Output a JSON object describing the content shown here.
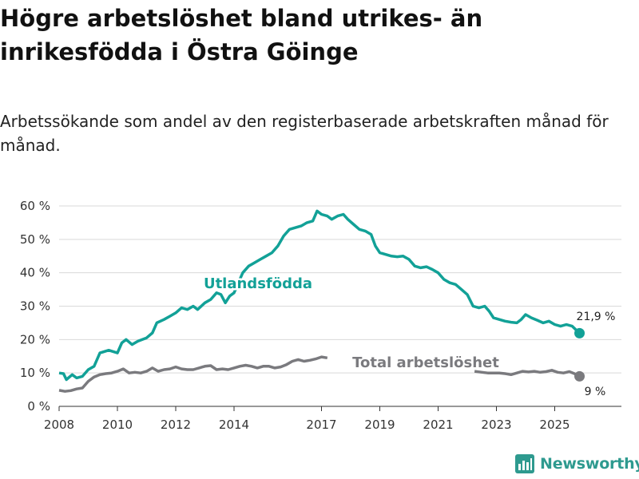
{
  "title": "Högre arbetslöshet bland utrikes- än inrikesfödda i Östra Göinge",
  "subtitle": "Arbetssökande som andel av den registerbaserade arbetskraften månad för månad.",
  "brand": {
    "name": "Newsworthy",
    "color": "#2e9a8f"
  },
  "chart_data": {
    "type": "line",
    "ylim": [
      0,
      60
    ],
    "yticks": [
      0,
      10,
      20,
      30,
      40,
      50,
      60
    ],
    "ytick_labels": [
      "0 %",
      "10 %",
      "20 %",
      "30 %",
      "40 %",
      "50 %",
      "60 %"
    ],
    "xlim": [
      2008,
      2026.3
    ],
    "xticks": [
      2008,
      2010,
      2012,
      2014,
      2017,
      2019,
      2021,
      2023,
      2025
    ],
    "xtick_labels": [
      "2008",
      "2010",
      "2012",
      "2014",
      "2017",
      "2019",
      "2021",
      "2023",
      "2025"
    ],
    "series": [
      {
        "name": "Utlandsfödda",
        "label": "Utlandsfödda",
        "color": "#12a197",
        "end_label": "21,9 %",
        "points": [
          [
            2008.0,
            10
          ],
          [
            2008.15,
            9.8
          ],
          [
            2008.25,
            8
          ],
          [
            2008.45,
            9.5
          ],
          [
            2008.6,
            8.5
          ],
          [
            2008.8,
            9
          ],
          [
            2009.0,
            11
          ],
          [
            2009.2,
            12
          ],
          [
            2009.4,
            16
          ],
          [
            2009.7,
            16.8
          ],
          [
            2010.0,
            16
          ],
          [
            2010.15,
            19
          ],
          [
            2010.3,
            20
          ],
          [
            2010.5,
            18.5
          ],
          [
            2010.7,
            19.5
          ],
          [
            2011.0,
            20.5
          ],
          [
            2011.2,
            22
          ],
          [
            2011.35,
            25
          ],
          [
            2011.6,
            26
          ],
          [
            2011.8,
            27
          ],
          [
            2012.0,
            28
          ],
          [
            2012.2,
            29.5
          ],
          [
            2012.4,
            29
          ],
          [
            2012.6,
            30
          ],
          [
            2012.75,
            29
          ],
          [
            2013.0,
            31
          ],
          [
            2013.2,
            32
          ],
          [
            2013.4,
            34
          ],
          [
            2013.55,
            33.5
          ],
          [
            2013.7,
            31
          ],
          [
            2013.85,
            33
          ],
          [
            2014.0,
            34
          ],
          [
            2014.1,
            36
          ],
          [
            2014.3,
            40
          ],
          [
            2014.5,
            42
          ],
          [
            2014.7,
            43
          ],
          [
            2014.9,
            44
          ],
          [
            2015.1,
            45
          ],
          [
            2015.3,
            46
          ],
          [
            2015.5,
            48
          ],
          [
            2015.7,
            51
          ],
          [
            2015.9,
            53
          ],
          [
            2016.1,
            53.5
          ],
          [
            2016.3,
            54
          ],
          [
            2016.5,
            55
          ],
          [
            2016.7,
            55.5
          ],
          [
            2016.85,
            58.5
          ],
          [
            2017.0,
            57.5
          ],
          [
            2017.2,
            57
          ],
          [
            2017.35,
            56
          ],
          [
            2017.55,
            57
          ],
          [
            2017.75,
            57.5
          ],
          [
            2017.9,
            56
          ],
          [
            2018.1,
            54.5
          ],
          [
            2018.3,
            53
          ],
          [
            2018.5,
            52.5
          ],
          [
            2018.7,
            51.5
          ],
          [
            2018.85,
            48
          ],
          [
            2019.0,
            46
          ],
          [
            2019.2,
            45.5
          ],
          [
            2019.4,
            45
          ],
          [
            2019.6,
            44.8
          ],
          [
            2019.8,
            45
          ],
          [
            2020.0,
            44
          ],
          [
            2020.2,
            42
          ],
          [
            2020.4,
            41.5
          ],
          [
            2020.6,
            41.8
          ],
          [
            2020.8,
            41
          ],
          [
            2021.0,
            40
          ],
          [
            2021.2,
            38
          ],
          [
            2021.4,
            37
          ],
          [
            2021.6,
            36.5
          ],
          [
            2021.8,
            35
          ],
          [
            2022.0,
            33.5
          ],
          [
            2022.2,
            30
          ],
          [
            2022.4,
            29.5
          ],
          [
            2022.6,
            30
          ],
          [
            2022.75,
            28.5
          ],
          [
            2022.9,
            26.5
          ],
          [
            2023.1,
            26
          ],
          [
            2023.3,
            25.5
          ],
          [
            2023.5,
            25.2
          ],
          [
            2023.7,
            25
          ],
          [
            2023.85,
            26
          ],
          [
            2024.0,
            27.5
          ],
          [
            2024.2,
            26.5
          ],
          [
            2024.4,
            25.8
          ],
          [
            2024.6,
            25
          ],
          [
            2024.8,
            25.5
          ],
          [
            2025.0,
            24.5
          ],
          [
            2025.2,
            24
          ],
          [
            2025.4,
            24.5
          ],
          [
            2025.6,
            24
          ],
          [
            2025.85,
            21.9
          ]
        ]
      },
      {
        "name": "Total arbetslöshet",
        "label": "Total arbetslöshet",
        "color": "#7a7a7e",
        "end_label": "9 %",
        "points": [
          [
            2008.0,
            4.8
          ],
          [
            2008.2,
            4.5
          ],
          [
            2008.4,
            4.7
          ],
          [
            2008.6,
            5.2
          ],
          [
            2008.8,
            5.5
          ],
          [
            2009.0,
            7.5
          ],
          [
            2009.2,
            8.8
          ],
          [
            2009.4,
            9.5
          ],
          [
            2009.6,
            9.8
          ],
          [
            2009.8,
            10
          ],
          [
            2010.0,
            10.5
          ],
          [
            2010.2,
            11.2
          ],
          [
            2010.4,
            10
          ],
          [
            2010.6,
            10.2
          ],
          [
            2010.8,
            10
          ],
          [
            2011.0,
            10.5
          ],
          [
            2011.2,
            11.5
          ],
          [
            2011.4,
            10.5
          ],
          [
            2011.6,
            11
          ],
          [
            2011.8,
            11.2
          ],
          [
            2012.0,
            11.8
          ],
          [
            2012.2,
            11.2
          ],
          [
            2012.4,
            11
          ],
          [
            2012.6,
            11
          ],
          [
            2012.8,
            11.5
          ],
          [
            2013.0,
            12
          ],
          [
            2013.2,
            12.2
          ],
          [
            2013.4,
            11
          ],
          [
            2013.6,
            11.2
          ],
          [
            2013.8,
            11
          ],
          [
            2014.0,
            11.5
          ],
          [
            2014.2,
            12
          ],
          [
            2014.4,
            12.3
          ],
          [
            2014.6,
            12
          ],
          [
            2014.8,
            11.5
          ],
          [
            2015.0,
            12
          ],
          [
            2015.2,
            12
          ],
          [
            2015.4,
            11.5
          ],
          [
            2015.6,
            11.8
          ],
          [
            2015.8,
            12.5
          ],
          [
            2016.0,
            13.5
          ],
          [
            2016.2,
            14
          ],
          [
            2016.4,
            13.5
          ],
          [
            2016.6,
            13.8
          ],
          [
            2016.8,
            14.2
          ],
          [
            2017.0,
            14.8
          ],
          [
            2017.2,
            14.5
          ]
        ]
      }
    ]
  }
}
